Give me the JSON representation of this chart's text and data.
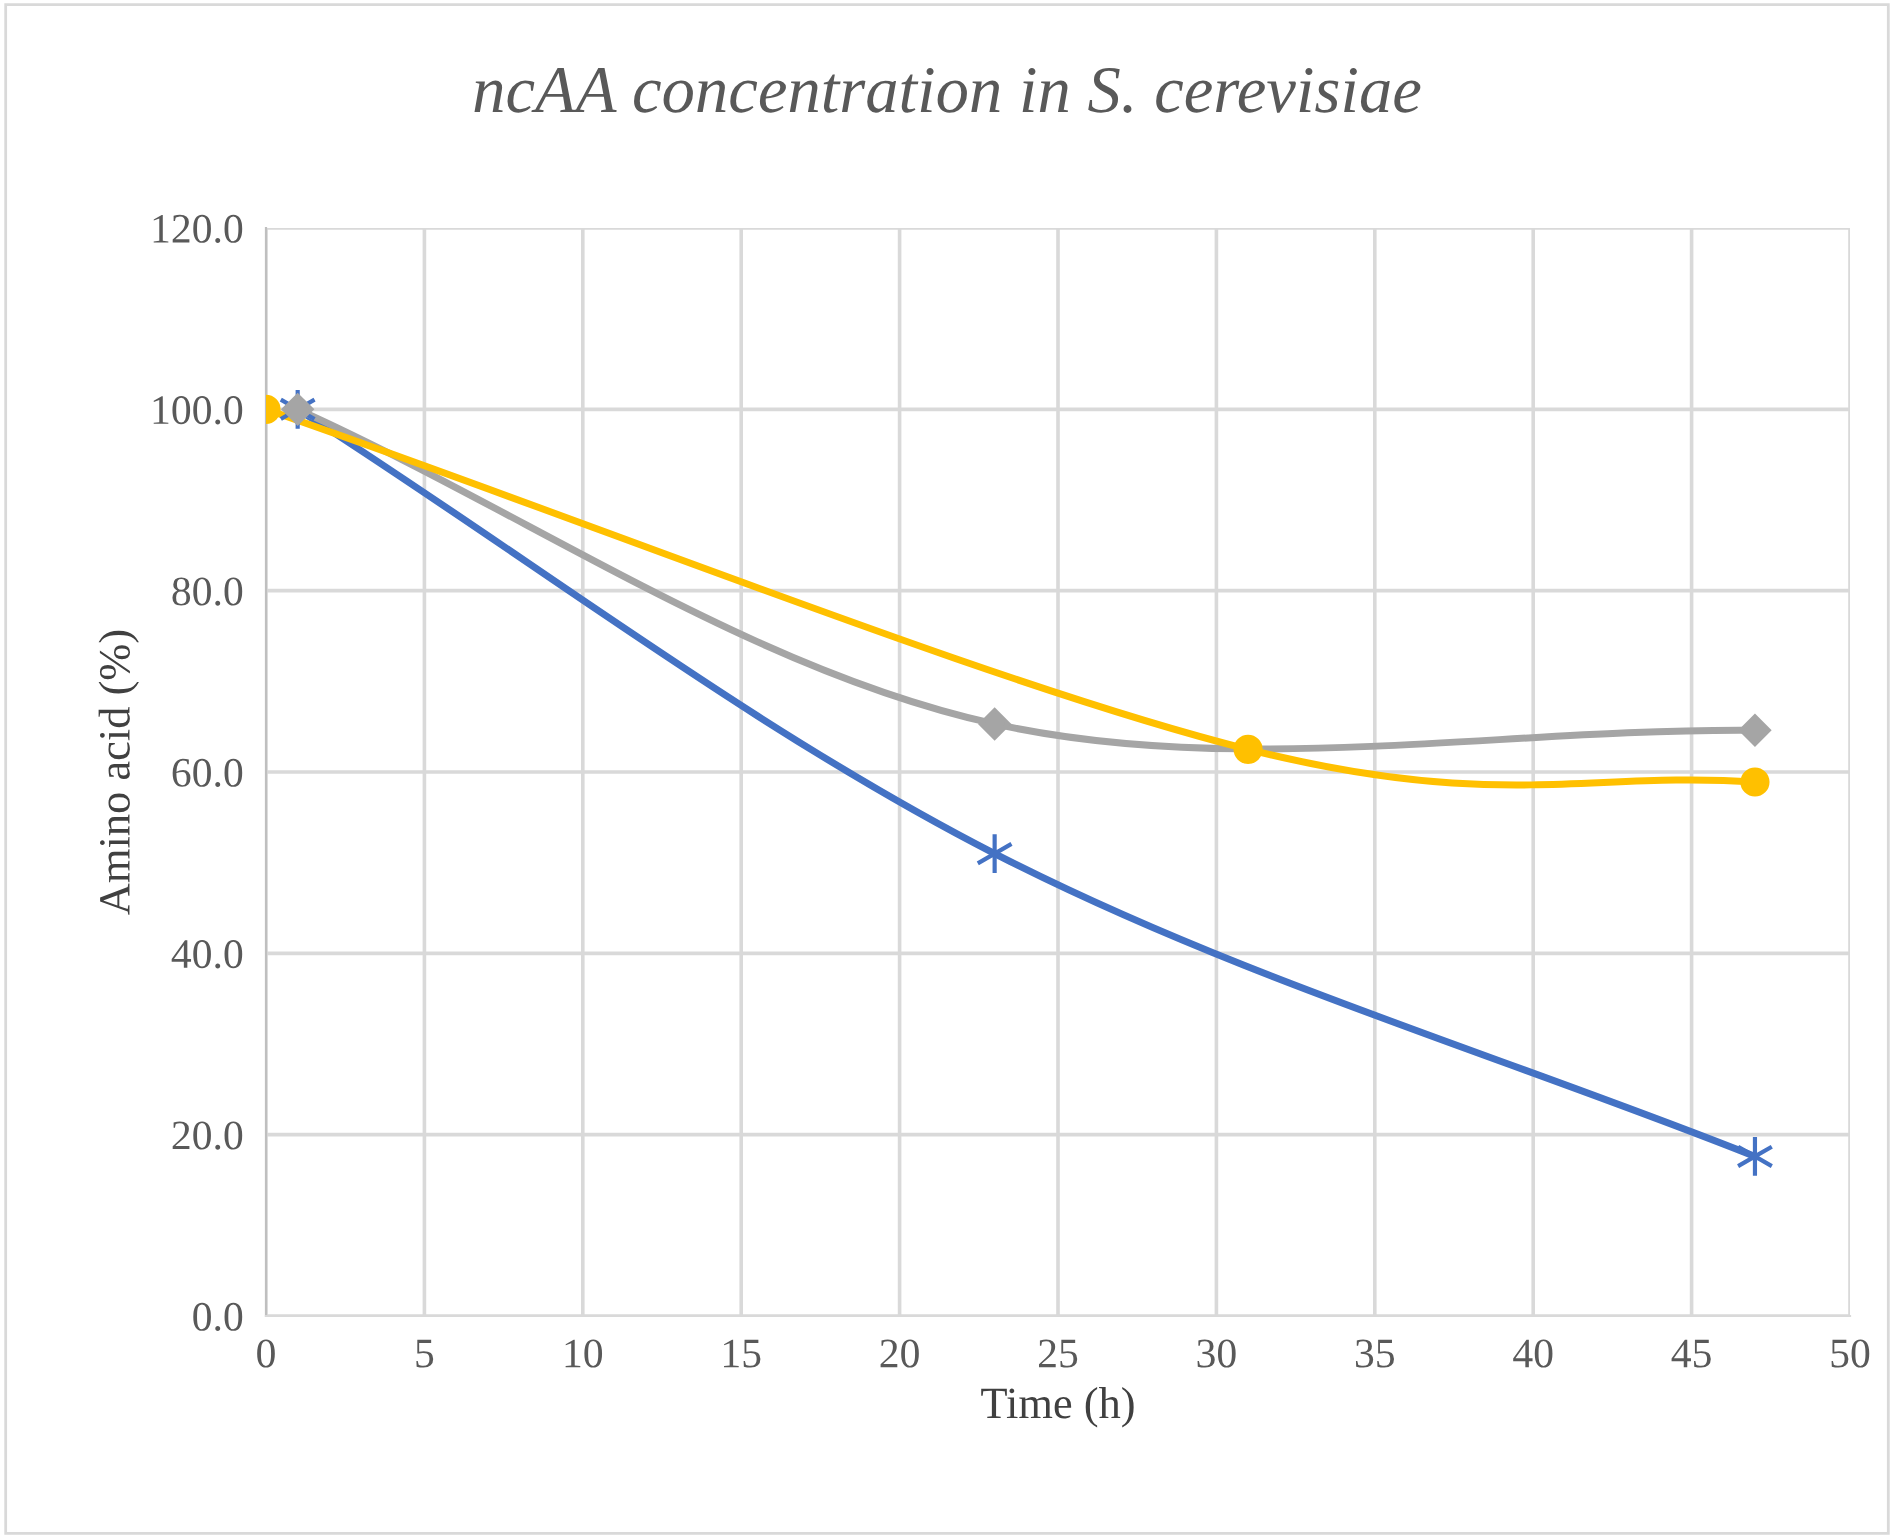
{
  "chart_data": {
    "type": "line",
    "title": "ncAA concentration in S. cerevisiae",
    "xlabel": "Time (h)",
    "ylabel": "Amino acid (%)",
    "xlim": [
      0,
      50
    ],
    "xticks": [
      0,
      5,
      10,
      15,
      20,
      25,
      30,
      35,
      40,
      45,
      50
    ],
    "ylim": [
      0,
      120
    ],
    "yticks": [
      {
        "value": 0,
        "label": "0.0"
      },
      {
        "value": 20,
        "label": "20.0"
      },
      {
        "value": 40,
        "label": "40.0"
      },
      {
        "value": 60,
        "label": "60.0"
      },
      {
        "value": 80,
        "label": "80.0"
      },
      {
        "value": 100,
        "label": "100.0"
      },
      {
        "value": 120,
        "label": "120.0"
      }
    ],
    "grid": true,
    "legend": false,
    "line_style": "solid",
    "series": [
      {
        "color": "#4472c4",
        "marker": "cross",
        "x": [
          1,
          23,
          47
        ],
        "values": [
          100,
          51.0,
          17.6
        ]
      },
      {
        "color": "#a5a5a5",
        "marker": "diamond",
        "x": [
          1,
          23,
          47
        ],
        "values": [
          100,
          65.3,
          64.6
        ]
      },
      {
        "color": "#ffc000",
        "marker": "circle",
        "x": [
          0,
          31,
          47
        ],
        "values": [
          100,
          62.5,
          58.9
        ]
      }
    ]
  }
}
